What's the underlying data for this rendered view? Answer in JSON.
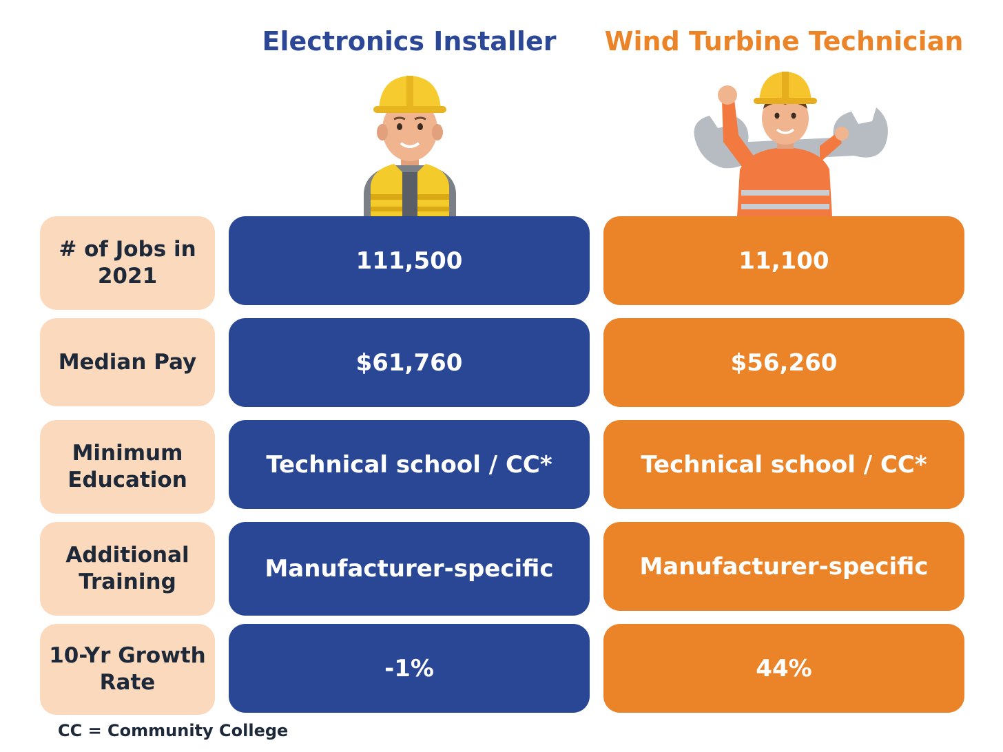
{
  "headers": {
    "left": "Electronics Installer",
    "right": "Wind Turbine Technician"
  },
  "colors": {
    "blue": "#2a4796",
    "orange": "#eb8429",
    "label_bg": "#fbd9bd",
    "label_text": "#1d2838"
  },
  "icons": {
    "left": "construction-worker-hardhat-vest-icon",
    "right": "technician-holding-wrench-icon"
  },
  "rows": [
    {
      "label": "# of Jobs in 2021",
      "left": "111,500",
      "right": "11,100"
    },
    {
      "label": "Median Pay",
      "left": "$61,760",
      "right": "$56,260"
    },
    {
      "label": "Minimum Education",
      "left": "Technical school / CC*",
      "right": "Technical school / CC*"
    },
    {
      "label": "Additional Training",
      "left": "Manufacturer-specific",
      "right": "Manufacturer-specific"
    },
    {
      "label": "10-Yr Growth Rate",
      "left": "-1%",
      "right": "44%"
    }
  ],
  "footnote": "CC =  Community College"
}
